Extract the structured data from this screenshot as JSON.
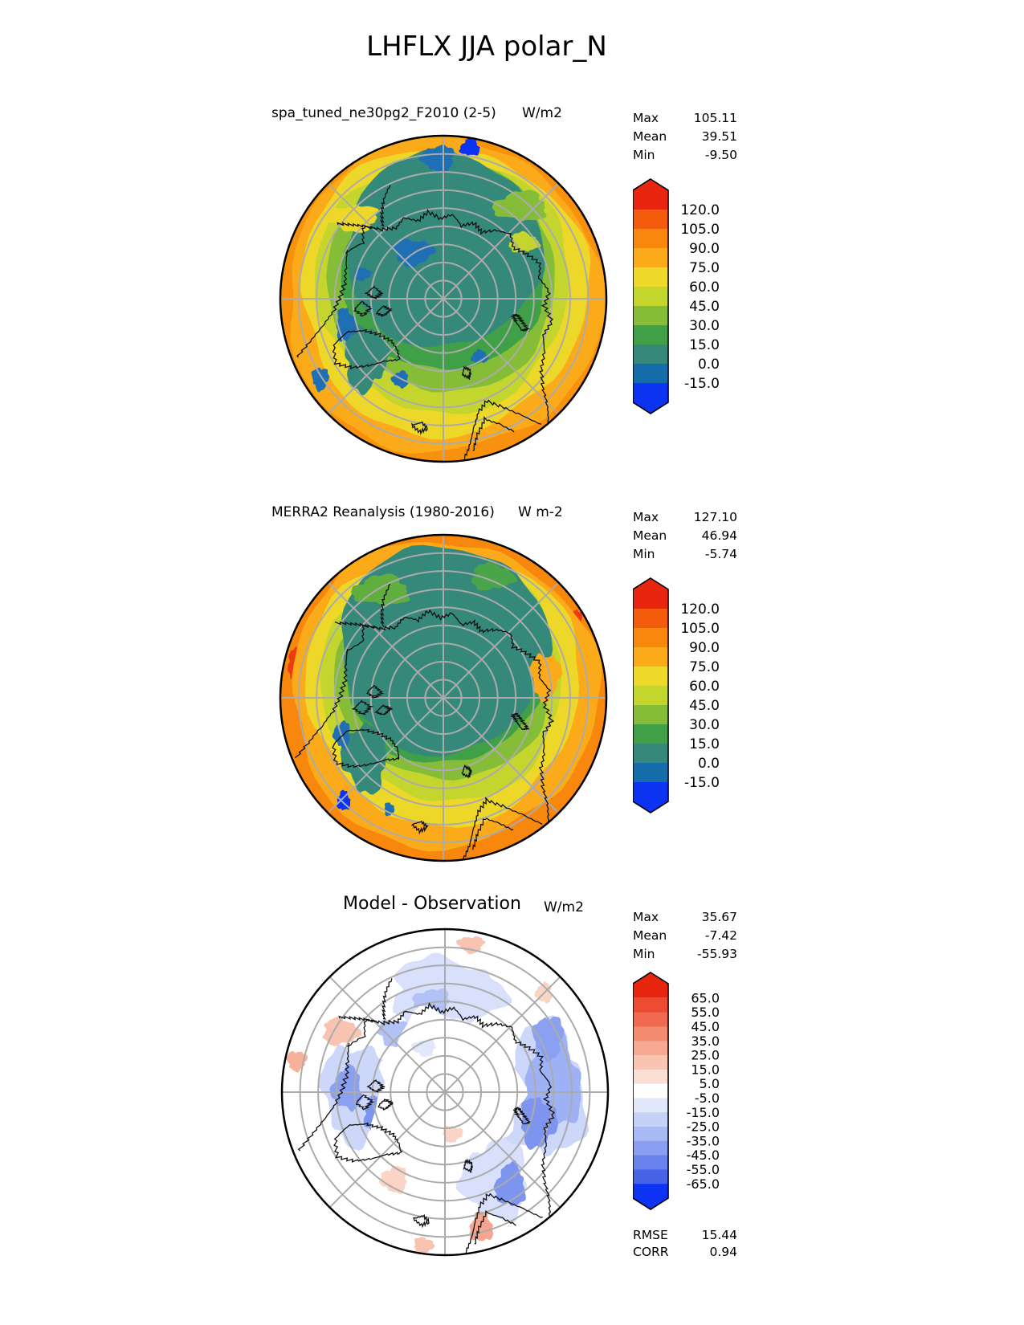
{
  "title": "LHFLX JJA polar_N",
  "panels": [
    {
      "id": "model",
      "subtitle": "spa_tuned_ne30pg2_F2010 (2-5)",
      "units": "W/m2",
      "stats": [
        {
          "label": "Max",
          "value": "105.11"
        },
        {
          "label": "Mean",
          "value": "39.51"
        },
        {
          "label": "Min",
          "value": "-9.50"
        }
      ],
      "colorbar": {
        "ticks": [
          "120.0",
          "105.0",
          "90.0",
          "75.0",
          "60.0",
          "45.0",
          "30.0",
          "15.0",
          "0.0",
          "-15.0"
        ],
        "colors": [
          "#e8250e",
          "#f35c0c",
          "#f8870d",
          "#fbab1a",
          "#ecd929",
          "#c4d62e",
          "#85bd39",
          "#3fa047",
          "#35897b",
          "#156cab",
          "#0d33f2"
        ]
      }
    },
    {
      "id": "obs",
      "subtitle": "MERRA2 Reanalysis (1980-2016)",
      "units": "W m-2",
      "stats": [
        {
          "label": "Max",
          "value": "127.10"
        },
        {
          "label": "Mean",
          "value": "46.94"
        },
        {
          "label": "Min",
          "value": "-5.74"
        }
      ],
      "colorbar": {
        "ticks": [
          "120.0",
          "105.0",
          "90.0",
          "75.0",
          "60.0",
          "45.0",
          "30.0",
          "15.0",
          "0.0",
          "-15.0"
        ],
        "colors": [
          "#e8250e",
          "#f35c0c",
          "#f8870d",
          "#fbab1a",
          "#ecd929",
          "#c4d62e",
          "#85bd39",
          "#3fa047",
          "#35897b",
          "#156cab",
          "#0d33f2"
        ]
      }
    },
    {
      "id": "diff",
      "subtitle": "Model - Observation",
      "units": "W/m2",
      "stats": [
        {
          "label": "Max",
          "value": "35.67"
        },
        {
          "label": "Mean",
          "value": "-7.42"
        },
        {
          "label": "Min",
          "value": "-55.93"
        }
      ],
      "colorbar": {
        "ticks": [
          "65.0",
          "55.0",
          "45.0",
          "35.0",
          "25.0",
          "15.0",
          "5.0",
          "-5.0",
          "-15.0",
          "-25.0",
          "-35.0",
          "-45.0",
          "-55.0",
          "-65.0"
        ],
        "colors": [
          "#e8250e",
          "#ee4b33",
          "#f16a50",
          "#f48a70",
          "#f7a890",
          "#fac4b2",
          "#fcdfd4",
          "#ffffff",
          "#e2e8fb",
          "#c6d1f8",
          "#a8b9f4",
          "#8a9ff0",
          "#6a83ec",
          "#4763e6",
          "#0d33f2"
        ]
      }
    }
  ],
  "metrics": [
    {
      "label": "RMSE",
      "value": "15.44"
    },
    {
      "label": "CORR",
      "value": "0.94"
    }
  ],
  "chart_data": {
    "type": "heatmap",
    "title": "LHFLX JJA polar_N",
    "layout": "three stacked north-polar stereographic contour maps with vertical colorbars",
    "panels": [
      {
        "name": "spa_tuned_ne30pg2_F2010 (2-5)",
        "units": "W/m2",
        "max": 105.11,
        "mean": 39.51,
        "min": -9.5,
        "contour_levels": [
          -15,
          0,
          15,
          30,
          45,
          60,
          75,
          90,
          105,
          120
        ],
        "palette": "blue-teal-green-yellow-orange-red, arrows both ends"
      },
      {
        "name": "MERRA2 Reanalysis (1980-2016)",
        "units": "W m-2",
        "max": 127.1,
        "mean": 46.94,
        "min": -5.74,
        "contour_levels": [
          -15,
          0,
          15,
          30,
          45,
          60,
          75,
          90,
          105,
          120
        ],
        "palette": "blue-teal-green-yellow-orange-red, arrows both ends"
      },
      {
        "name": "Model - Observation",
        "units": "W/m2",
        "max": 35.67,
        "mean": -7.42,
        "min": -55.93,
        "contour_levels": [
          -65,
          -55,
          -45,
          -35,
          -25,
          -15,
          -5,
          5,
          15,
          25,
          35,
          45,
          55,
          65
        ],
        "palette": "diverging blue-white-red, arrows both ends",
        "rmse": 15.44,
        "corr": 0.94
      }
    ]
  }
}
